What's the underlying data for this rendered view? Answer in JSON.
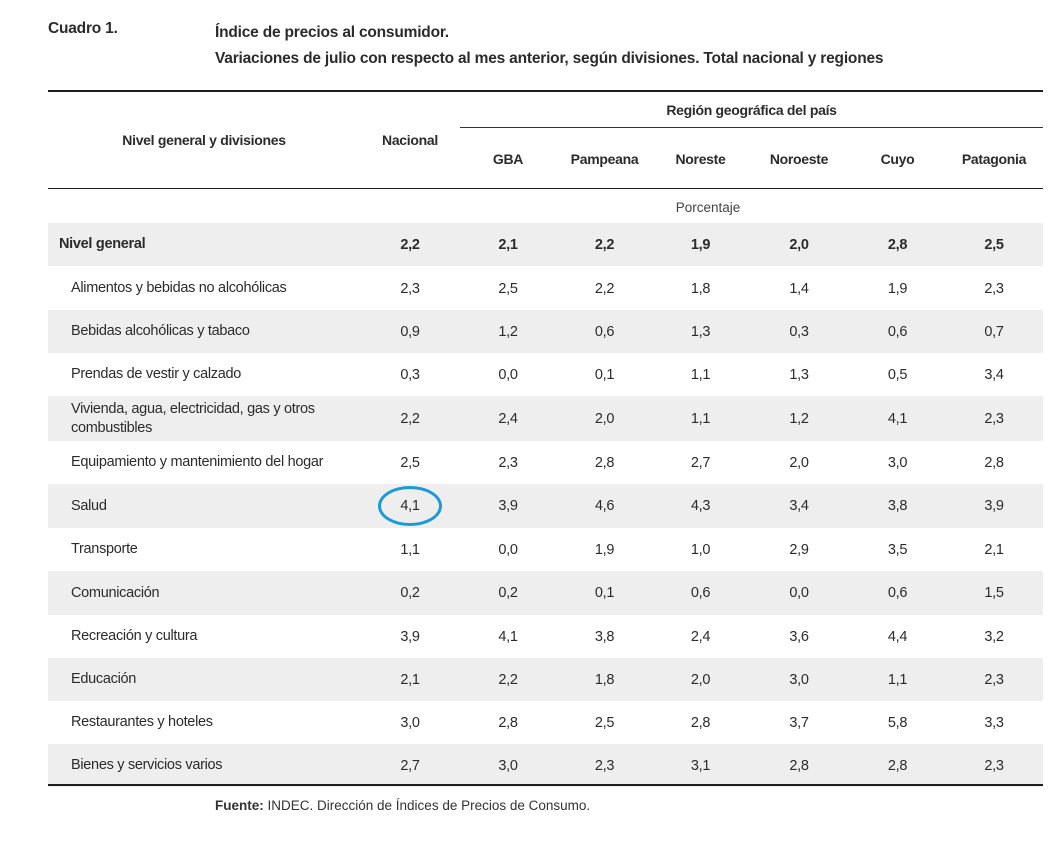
{
  "caption": {
    "label": "Cuadro 1.",
    "title_line1": "Índice de precios al consumidor.",
    "title_line2": "Variaciones de julio con respecto al mes anterior, según divisiones. Total nacional y regiones"
  },
  "table": {
    "header_first": "Nivel general y divisiones",
    "header_national": "Nacional",
    "header_group": "Región geográfica del país",
    "regions": [
      "GBA",
      "Pampeana",
      "Noreste",
      "Noroeste",
      "Cuyo",
      "Patagonia"
    ],
    "unit": "Porcentaje",
    "rows": [
      {
        "label": "Nivel general",
        "values": [
          "2,2",
          "2,1",
          "2,2",
          "1,9",
          "2,0",
          "2,8",
          "2,5"
        ]
      },
      {
        "label": "Alimentos y bebidas no alcohólicas",
        "values": [
          "2,3",
          "2,5",
          "2,2",
          "1,8",
          "1,4",
          "1,9",
          "2,3"
        ]
      },
      {
        "label": "Bebidas alcohólicas y tabaco",
        "values": [
          "0,9",
          "1,2",
          "0,6",
          "1,3",
          "0,3",
          "0,6",
          "0,7"
        ]
      },
      {
        "label": "Prendas de vestir y calzado",
        "values": [
          "0,3",
          "0,0",
          "0,1",
          "1,1",
          "1,3",
          "0,5",
          "3,4"
        ]
      },
      {
        "label": "Vivienda, agua, electricidad, gas y otros combustibles",
        "values": [
          "2,2",
          "2,4",
          "2,0",
          "1,1",
          "1,2",
          "4,1",
          "2,3"
        ]
      },
      {
        "label": "Equipamiento y mantenimiento del hogar",
        "values": [
          "2,5",
          "2,3",
          "2,8",
          "2,7",
          "2,0",
          "3,0",
          "2,8"
        ]
      },
      {
        "label": "Salud",
        "values": [
          "4,1",
          "3,9",
          "4,6",
          "4,3",
          "3,4",
          "3,8",
          "3,9"
        ]
      },
      {
        "label": "Transporte",
        "values": [
          "1,1",
          "0,0",
          "1,9",
          "1,0",
          "2,9",
          "3,5",
          "2,1"
        ]
      },
      {
        "label": "Comunicación",
        "values": [
          "0,2",
          "0,2",
          "0,1",
          "0,6",
          "0,0",
          "0,6",
          "1,5"
        ]
      },
      {
        "label": "Recreación y cultura",
        "values": [
          "3,9",
          "4,1",
          "3,8",
          "2,4",
          "3,6",
          "4,4",
          "3,2"
        ]
      },
      {
        "label": "Educación",
        "values": [
          "2,1",
          "2,2",
          "1,8",
          "2,0",
          "3,0",
          "1,1",
          "2,3"
        ]
      },
      {
        "label": "Restaurantes y hoteles",
        "values": [
          "3,0",
          "2,8",
          "2,5",
          "2,8",
          "3,7",
          "5,8",
          "3,3"
        ]
      },
      {
        "label": "Bienes y servicios varios",
        "values": [
          "2,7",
          "3,0",
          "2,3",
          "3,1",
          "2,8",
          "2,8",
          "2,3"
        ]
      }
    ]
  },
  "source": {
    "label": "Fuente:",
    "text": " INDEC. Dirección de Índices de Precios de Consumo."
  },
  "highlight_color": "#1a9ad6"
}
